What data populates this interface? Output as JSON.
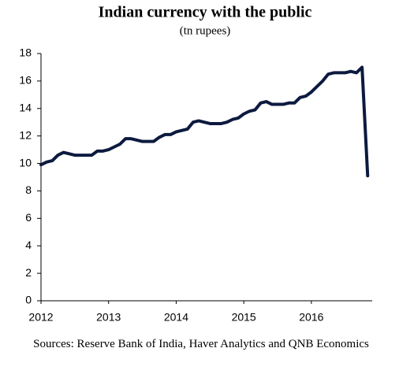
{
  "chart_data": {
    "type": "line",
    "title": "Indian currency with the public",
    "subtitle": "(tn rupees)",
    "source": "Sources: Reserve Bank of India, Haver Analytics and QNB Economics",
    "x": [
      2012.0,
      2012.083,
      2012.167,
      2012.25,
      2012.333,
      2012.417,
      2012.5,
      2012.583,
      2012.667,
      2012.75,
      2012.833,
      2012.917,
      2013.0,
      2013.083,
      2013.167,
      2013.25,
      2013.333,
      2013.417,
      2013.5,
      2013.583,
      2013.667,
      2013.75,
      2013.833,
      2013.917,
      2014.0,
      2014.083,
      2014.167,
      2014.25,
      2014.333,
      2014.417,
      2014.5,
      2014.583,
      2014.667,
      2014.75,
      2014.833,
      2014.917,
      2015.0,
      2015.083,
      2015.167,
      2015.25,
      2015.333,
      2015.417,
      2015.5,
      2015.583,
      2015.667,
      2015.75,
      2015.833,
      2015.917,
      2016.0,
      2016.083,
      2016.167,
      2016.25,
      2016.333,
      2016.417,
      2016.5,
      2016.583,
      2016.667,
      2016.75,
      2016.833
    ],
    "series": [
      {
        "name": "Currency with the public",
        "color": "#0d1a3f",
        "values": [
          9.9,
          10.1,
          10.2,
          10.6,
          10.8,
          10.7,
          10.6,
          10.6,
          10.6,
          10.6,
          10.9,
          10.9,
          11.0,
          11.2,
          11.4,
          11.8,
          11.8,
          11.7,
          11.6,
          11.6,
          11.6,
          11.9,
          12.1,
          12.1,
          12.3,
          12.4,
          12.5,
          13.0,
          13.1,
          13.0,
          12.9,
          12.9,
          12.9,
          13.0,
          13.2,
          13.3,
          13.6,
          13.8,
          13.9,
          14.4,
          14.5,
          14.3,
          14.3,
          14.3,
          14.4,
          14.4,
          14.8,
          14.9,
          15.2,
          15.6,
          16.0,
          16.5,
          16.6,
          16.6,
          16.6,
          16.7,
          16.6,
          17.0,
          9.1
        ]
      }
    ],
    "xlim": [
      2012,
      2016.9
    ],
    "xticks": [
      2012,
      2013,
      2014,
      2015,
      2016
    ],
    "ylim": [
      0,
      18
    ],
    "yticks": [
      0,
      2,
      4,
      6,
      8,
      10,
      12,
      14,
      16,
      18
    ],
    "grid": false
  }
}
